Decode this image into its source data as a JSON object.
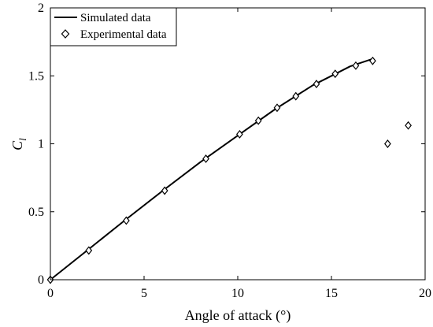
{
  "chart_data": {
    "type": "line",
    "xlabel": "Angle of attack (°)",
    "ylabel_main": "C",
    "ylabel_sub": "l",
    "xlim": [
      0,
      20
    ],
    "ylim": [
      0,
      2
    ],
    "xticks": [
      0,
      5,
      10,
      15,
      20
    ],
    "yticks": [
      0,
      0.5,
      1,
      1.5,
      2
    ],
    "xtick_labels": [
      "0",
      "5",
      "10",
      "15",
      "20"
    ],
    "ytick_labels": [
      "0",
      "0.5",
      "1",
      "1.5",
      "2"
    ],
    "grid": false,
    "legend_position": "top-left",
    "series": [
      {
        "name": "Simulated data",
        "style": "line",
        "color": "#000000",
        "x": [
          0,
          2,
          4,
          6,
          8,
          10,
          12,
          14,
          15,
          16,
          17.2
        ],
        "y": [
          0,
          0.22,
          0.44,
          0.655,
          0.865,
          1.06,
          1.255,
          1.43,
          1.5,
          1.57,
          1.625
        ]
      },
      {
        "name": "Experimental data",
        "style": "diamond",
        "color": "#000000",
        "x": [
          0,
          2.05,
          4.05,
          6.1,
          8.3,
          10.1,
          11.1,
          12.1,
          13.1,
          14.2,
          15.2,
          16.3,
          17.2,
          18.0,
          19.1
        ],
        "y": [
          0,
          0.215,
          0.435,
          0.655,
          0.89,
          1.07,
          1.17,
          1.265,
          1.35,
          1.44,
          1.515,
          1.575,
          1.61,
          1.0,
          1.135
        ]
      }
    ]
  }
}
